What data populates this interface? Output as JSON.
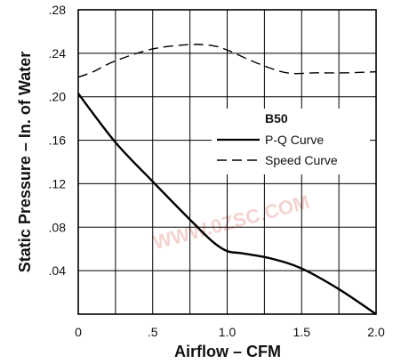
{
  "chart_data": {
    "type": "line",
    "title": "",
    "xlabel": "Airflow – CFM",
    "ylabel": "Static Pressure – In. of Water",
    "xlim": [
      0,
      2.0
    ],
    "ylim": [
      0,
      0.28
    ],
    "x_ticks": [
      "0",
      ".5",
      "1.0",
      "1.5",
      "2.0"
    ],
    "y_ticks": [
      ".04",
      ".08",
      ".12",
      ".16",
      ".20",
      ".24",
      ".28"
    ],
    "grid": true,
    "legend": {
      "title": "B50",
      "placement": "center-right",
      "entries": [
        "P-Q Curve",
        "Speed Curve"
      ]
    },
    "series": [
      {
        "name": "P-Q Curve",
        "style": "solid",
        "color": "#000000",
        "x": [
          0,
          0.25,
          0.5,
          0.75,
          0.9,
          1.0,
          1.1,
          1.3,
          1.5,
          1.75,
          2.0
        ],
        "y": [
          0.203,
          0.158,
          0.122,
          0.087,
          0.067,
          0.058,
          0.056,
          0.051,
          0.042,
          0.023,
          0.0
        ]
      },
      {
        "name": "Speed Curve",
        "style": "dashed",
        "color": "#000000",
        "x": [
          0,
          0.1,
          0.25,
          0.5,
          0.75,
          0.9,
          1.0,
          1.2,
          1.4,
          1.6,
          1.8,
          2.0
        ],
        "y": [
          0.218,
          0.223,
          0.233,
          0.244,
          0.248,
          0.247,
          0.243,
          0.231,
          0.222,
          0.222,
          0.222,
          0.223
        ]
      }
    ]
  },
  "watermark": {
    "text": "WWW.0ZSC.COM",
    "color": "#e8a8a0"
  }
}
